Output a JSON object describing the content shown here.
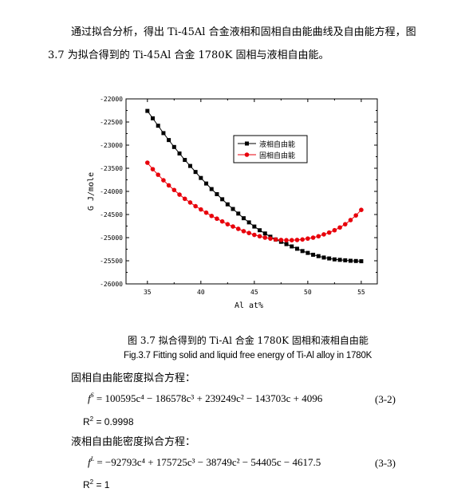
{
  "paragraph": {
    "line1": "通过拟合分析，得出 Ti-45Al 合金液相和固相自由能曲线及自由能方程，图",
    "line2": "3.7 为拟合得到的 Ti-45Al 合金 1780K 固相与液相自由能。"
  },
  "chart_data": {
    "type": "scatter",
    "xlabel": "Al at%",
    "ylabel": "G J/mole",
    "xlim": [
      33,
      56.5
    ],
    "ylim": [
      -26000,
      -22000
    ],
    "xticks": [
      35,
      40,
      45,
      50,
      55
    ],
    "yticks": [
      -22000,
      -22500,
      -23000,
      -23500,
      -24000,
      -24500,
      -25000,
      -25500,
      -26000
    ],
    "legend_position": "upper-right",
    "series": [
      {
        "name": "液相自由能",
        "color": "#000000",
        "marker": "square",
        "x": [
          35,
          35.5,
          36,
          36.5,
          37,
          37.5,
          38,
          38.5,
          39,
          39.5,
          40,
          40.5,
          41,
          41.5,
          42,
          42.5,
          43,
          43.5,
          44,
          44.5,
          45,
          45.5,
          46,
          46.5,
          47,
          47.5,
          48,
          48.5,
          49,
          49.5,
          50,
          50.5,
          51,
          51.5,
          52,
          52.5,
          53,
          53.5,
          54,
          54.5,
          55
        ],
        "y": [
          -22260,
          -22420,
          -22580,
          -22740,
          -22890,
          -23040,
          -23180,
          -23320,
          -23450,
          -23580,
          -23710,
          -23830,
          -23950,
          -24060,
          -24170,
          -24280,
          -24380,
          -24480,
          -24580,
          -24670,
          -24760,
          -24840,
          -24910,
          -24980,
          -25040,
          -25090,
          -25140,
          -25190,
          -25240,
          -25290,
          -25330,
          -25370,
          -25400,
          -25430,
          -25450,
          -25470,
          -25480,
          -25490,
          -25500,
          -25505,
          -25510
        ]
      },
      {
        "name": "固相自由能",
        "color": "#e8000b",
        "marker": "circle",
        "x": [
          35,
          35.5,
          36,
          36.5,
          37,
          37.5,
          38,
          38.5,
          39,
          39.5,
          40,
          40.5,
          41,
          41.5,
          42,
          42.5,
          43,
          43.5,
          44,
          44.5,
          45,
          45.5,
          46,
          46.5,
          47,
          47.5,
          48,
          48.5,
          49,
          49.5,
          50,
          50.5,
          51,
          51.5,
          52,
          52.5,
          53,
          53.5,
          54,
          54.5,
          55
        ],
        "y": [
          -23380,
          -23520,
          -23640,
          -23760,
          -23870,
          -23970,
          -24070,
          -24160,
          -24240,
          -24320,
          -24390,
          -24460,
          -24530,
          -24590,
          -24650,
          -24710,
          -24760,
          -24810,
          -24860,
          -24900,
          -24940,
          -24970,
          -25000,
          -25020,
          -25040,
          -25050,
          -25055,
          -25055,
          -25050,
          -25040,
          -25020,
          -25000,
          -24970,
          -24930,
          -24890,
          -24840,
          -24780,
          -24710,
          -24620,
          -24520,
          -24400
        ]
      }
    ]
  },
  "caption": {
    "cn": "图 3.7   拟合得到的 Ti-Al 合金 1780K 固相和液相自由能",
    "en": "Fig.3.7 Fitting solid and liquid free energy of Ti-Al alloy in 1780K"
  },
  "solid": {
    "label": "固相自由能密度拟合方程：",
    "f": "f",
    "sup": "S",
    "rhs": " = 100595c⁴ − 186578c³ + 239249c² − 143703c + 4096",
    "eqno": "(3-2)",
    "r2_base": "R",
    "r2_exp": "2",
    "r2_val": " = 0.9998"
  },
  "liquid": {
    "label": "液相自由能密度拟合方程：",
    "f": "f",
    "sup": "L",
    "rhs": " = −92793c⁴ + 175725c³ − 38749c² − 54405c − 4617.5",
    "eqno": "(3-3)",
    "r2_base": "R",
    "r2_exp": "2",
    "r2_val": " = 1"
  }
}
